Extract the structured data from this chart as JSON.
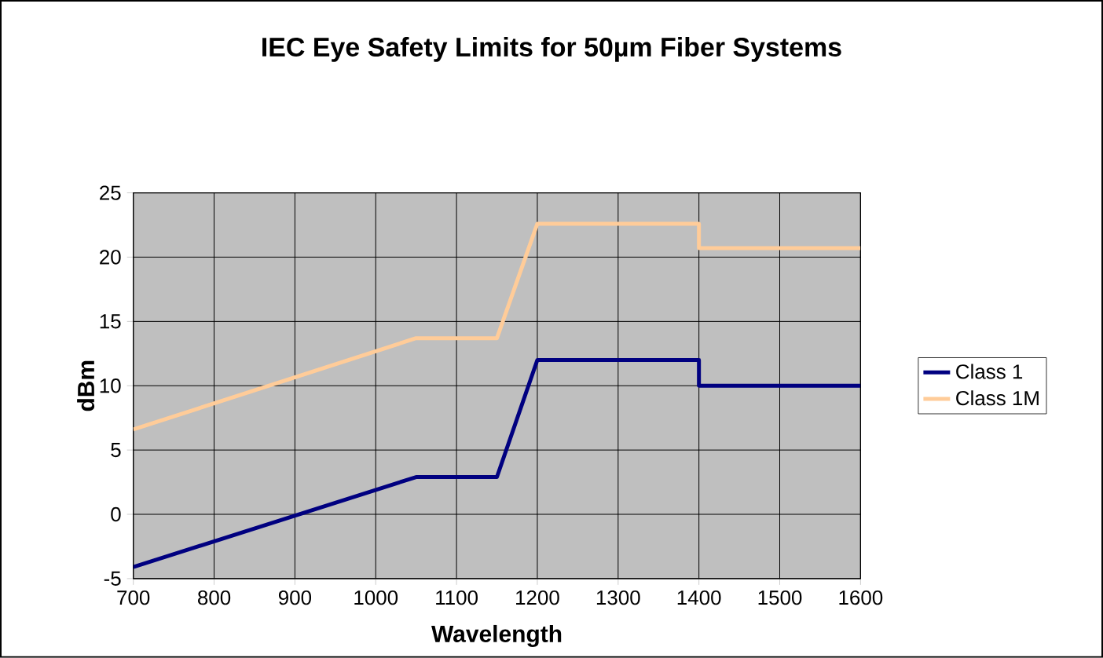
{
  "chart_data": {
    "type": "line",
    "title": "IEC Eye Safety Limits for 50µm Fiber Systems",
    "xlabel": "Wavelength",
    "ylabel": "dBm",
    "x": [
      700,
      1050,
      1150,
      1200,
      1400,
      1400,
      1600
    ],
    "series": [
      {
        "name": "Class 1",
        "color": "#000080",
        "values": [
          -4.1,
          2.9,
          2.9,
          12.0,
          12.0,
          10.0,
          10.0
        ]
      },
      {
        "name": "Class 1M",
        "color": "#ffcc99",
        "values": [
          6.6,
          13.7,
          13.7,
          22.6,
          22.6,
          20.7,
          20.7
        ]
      }
    ],
    "xlim": [
      700,
      1600
    ],
    "xticks": [
      700,
      800,
      900,
      1000,
      1100,
      1200,
      1300,
      1400,
      1500,
      1600
    ],
    "ylim": [
      -5,
      25
    ],
    "yticks": [
      -5,
      0,
      5,
      10,
      15,
      20,
      25
    ],
    "grid": true,
    "legend": "right"
  }
}
